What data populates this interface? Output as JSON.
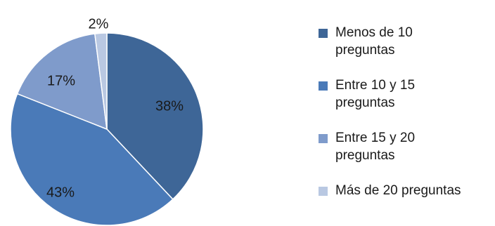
{
  "chart_data": {
    "type": "pie",
    "categories": [
      "Menos de 10 preguntas",
      "Entre 10 y 15 preguntas",
      "Entre 15 y 20 preguntas",
      "Más de 20 preguntas"
    ],
    "values": [
      38,
      43,
      17,
      2
    ],
    "labels": [
      "38%",
      "43%",
      "17%",
      "2%"
    ],
    "colors": [
      "#3e6697",
      "#4a7ab8",
      "#7f9bcb",
      "#b9c8e2"
    ],
    "legend_position": "right",
    "legend_lines": [
      [
        "Menos de 10",
        "preguntas"
      ],
      [
        "Entre 10 y 15",
        "preguntas"
      ],
      [
        "Entre 15 y 20",
        "preguntas"
      ],
      [
        "Más de 20 preguntas"
      ]
    ]
  }
}
